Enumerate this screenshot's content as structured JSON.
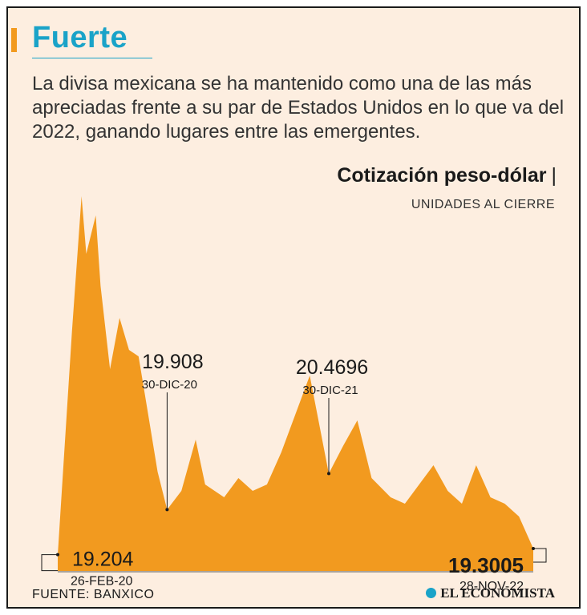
{
  "headline": "Fuerte",
  "lead": "La divisa mexicana se ha mantenido como una de las más apreciadas frente a su par de Estados Unidos en lo que va del 2022, ganando lugares entre las emergentes.",
  "source": "FUENTE: BANXICO",
  "brand": "EL ECONOMISTA",
  "colors": {
    "accent": "#f29a1f",
    "headline": "#1aa3c8",
    "background": "#fdeee0",
    "area": "#f29a1f"
  },
  "chart_data": {
    "type": "area",
    "title": "Cotización peso-dólar",
    "subtitle": "UNIDADES AL CIERRE",
    "ylim": [
      18.95,
      25.3
    ],
    "x": [
      0,
      3,
      5,
      6,
      8,
      9,
      11,
      13,
      15,
      17,
      19,
      21,
      23,
      26,
      29,
      31,
      35,
      38,
      41,
      44,
      47,
      50,
      53,
      57,
      60,
      63,
      66,
      70,
      73,
      76,
      79,
      82,
      85,
      88,
      91,
      94,
      97,
      100
    ],
    "values": [
      19.204,
      22.7,
      24.8,
      23.9,
      24.5,
      23.4,
      22.1,
      22.9,
      22.4,
      22.3,
      21.4,
      20.5,
      19.908,
      20.2,
      21.0,
      20.3,
      20.1,
      20.4,
      20.2,
      20.3,
      20.8,
      21.4,
      22.0,
      20.4696,
      20.9,
      21.3,
      20.4,
      20.1,
      20.0,
      20.3,
      20.6,
      20.2,
      20.0,
      20.6,
      20.1,
      20.0,
      19.8,
      19.3005
    ],
    "annotations": [
      {
        "value": "19.204",
        "date": "26-FEB-20",
        "x": 0,
        "y": 19.204
      },
      {
        "value": "19.908",
        "date": "30-DIC-20",
        "x": 23,
        "y": 19.908
      },
      {
        "value": "20.4696",
        "date": "30-DIC-21",
        "x": 57,
        "y": 20.4696
      },
      {
        "value": "19.3005",
        "date": "28-NOV-22",
        "x": 100,
        "y": 19.3005
      }
    ]
  }
}
